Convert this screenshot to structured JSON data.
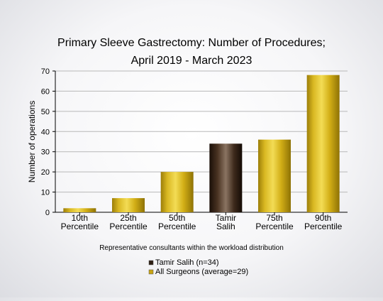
{
  "chart_data": {
    "type": "bar",
    "title": [
      "Primary Sleeve Gastrectomy: Number of Procedures;",
      "April 2019 - March 2023"
    ],
    "xlabel": "Representative consultants within the workload distribution",
    "ylabel": "Number of operations",
    "ylim": [
      0,
      70
    ],
    "yticks": [
      0,
      10,
      20,
      30,
      40,
      50,
      60,
      70
    ],
    "grid": true,
    "categories": [
      [
        "10th",
        "Percentile"
      ],
      [
        "25th",
        "Percentile"
      ],
      [
        "50th",
        "Percentile"
      ],
      [
        "Tamir",
        "Salih"
      ],
      [
        "75th",
        "Percentile"
      ],
      [
        "90th",
        "Percentile"
      ]
    ],
    "values": [
      2,
      7,
      20,
      34,
      36,
      68
    ],
    "highlight_index": 3,
    "colors": {
      "all_surgeons": "#c8a414",
      "highlight": "#2e1f14",
      "grid": "#b8b8b8"
    },
    "legend": {
      "placement": "bottom",
      "entries": [
        {
          "label": "Tamir Salih (n=34)",
          "color": "#2e1f14"
        },
        {
          "label": "All Surgeons (average=29)",
          "color": "#c8a414"
        }
      ]
    }
  }
}
